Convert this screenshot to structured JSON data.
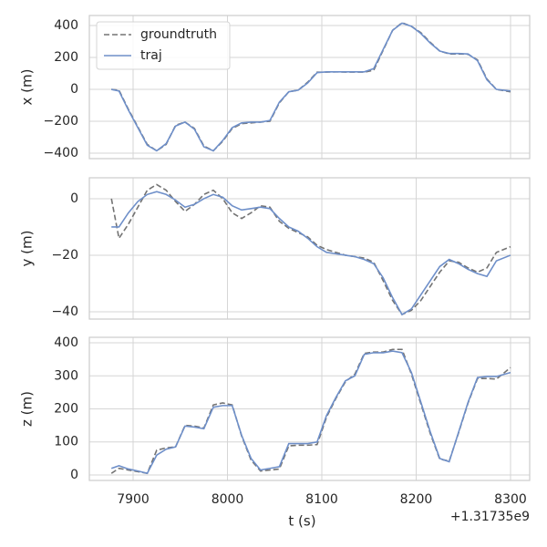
{
  "chart_data": [
    {
      "type": "line",
      "ylabel": "x (m)",
      "legend": "upper left",
      "grid": true,
      "xlim": [
        7853.6,
        8320.3
      ],
      "xticks": [
        7900,
        8000,
        8100,
        8200,
        8300
      ],
      "ylim": [
        -434,
        463
      ],
      "yticks": [
        {
          "value": -400,
          "label": "−400"
        },
        {
          "value": -200,
          "label": "−200"
        },
        0,
        200,
        400
      ],
      "x": [
        7877,
        7885,
        7895,
        7905,
        7915,
        7925,
        7935,
        7945,
        7955,
        7965,
        7975,
        7985,
        7995,
        8005,
        8015,
        8025,
        8035,
        8045,
        8055,
        8065,
        8075,
        8085,
        8095,
        8105,
        8115,
        8125,
        8135,
        8145,
        8155,
        8165,
        8175,
        8185,
        8195,
        8205,
        8215,
        8225,
        8235,
        8245,
        8255,
        8265,
        8275,
        8285,
        8300
      ],
      "series": [
        {
          "name": "groundtruth",
          "color": "#737373",
          "dashed": true,
          "values": [
            0,
            -5,
            -125,
            -235,
            -345,
            -385,
            -345,
            -225,
            -205,
            -245,
            -355,
            -385,
            -325,
            -245,
            -215,
            -210,
            -205,
            -200,
            -85,
            -15,
            -5,
            45,
            108,
            108,
            110,
            108,
            108,
            108,
            120,
            245,
            370,
            418,
            395,
            355,
            295,
            240,
            222,
            222,
            220,
            185,
            65,
            0,
            -15
          ]
        },
        {
          "name": "traj",
          "color": "#6e8fc9",
          "dashed": false,
          "values": [
            0,
            -10,
            -130,
            -240,
            -350,
            -385,
            -340,
            -230,
            -205,
            -250,
            -360,
            -385,
            -320,
            -240,
            -210,
            -205,
            -205,
            -195,
            -80,
            -15,
            -5,
            40,
            105,
            110,
            110,
            110,
            110,
            110,
            130,
            250,
            370,
            415,
            395,
            350,
            290,
            240,
            225,
            225,
            222,
            180,
            60,
            0,
            -10
          ]
        }
      ]
    },
    {
      "type": "line",
      "ylabel": "y (m)",
      "grid": true,
      "xlim": [
        7853.6,
        8320.3
      ],
      "xticks": [
        7900,
        8000,
        8100,
        8200,
        8300
      ],
      "ylim": [
        -42.6,
        7.4
      ],
      "yticks": [
        {
          "value": -40,
          "label": "−40"
        },
        {
          "value": -20,
          "label": "−20"
        },
        0
      ],
      "x": [
        7877,
        7885,
        7895,
        7905,
        7915,
        7925,
        7935,
        7945,
        7955,
        7965,
        7975,
        7985,
        7995,
        8005,
        8015,
        8025,
        8035,
        8045,
        8055,
        8065,
        8075,
        8085,
        8095,
        8105,
        8115,
        8125,
        8135,
        8145,
        8155,
        8165,
        8175,
        8185,
        8195,
        8205,
        8215,
        8225,
        8235,
        8245,
        8255,
        8265,
        8275,
        8285,
        8300
      ],
      "series": [
        {
          "color": "#737373",
          "dashed": true,
          "values": [
            0,
            -14,
            -9,
            -3,
            3,
            5,
            3,
            -1,
            -4.5,
            -2,
            1.5,
            3,
            0,
            -5,
            -7,
            -5,
            -2.5,
            -3,
            -8,
            -10.5,
            -12,
            -13.5,
            -16.5,
            -18,
            -19,
            -20,
            -20.5,
            -21,
            -22.5,
            -29,
            -36,
            -41,
            -39.5,
            -36,
            -31,
            -26,
            -22,
            -22.5,
            -24.5,
            -26,
            -24.5,
            -19,
            -17
          ]
        },
        {
          "color": "#6e8fc9",
          "dashed": false,
          "values": [
            -10,
            -10,
            -5,
            -1,
            1.5,
            2.5,
            1.5,
            -0.5,
            -3,
            -2,
            0,
            1.5,
            0.5,
            -2.5,
            -4,
            -3.5,
            -3,
            -3.5,
            -7,
            -10,
            -11.5,
            -14,
            -17,
            -19,
            -19.5,
            -20,
            -20.5,
            -21.5,
            -23,
            -28,
            -35,
            -41,
            -39,
            -34,
            -29,
            -24,
            -21.5,
            -23,
            -25,
            -26.5,
            -27.5,
            -22,
            -20
          ]
        }
      ]
    },
    {
      "type": "line",
      "ylabel": "z (m)",
      "xlabel": "t (s)",
      "x_offset_label": "+1.31735e9",
      "grid": true,
      "xlim": [
        7853.6,
        8320.3
      ],
      "xticks": [
        7900,
        8000,
        8100,
        8200,
        8300
      ],
      "ylim": [
        -16.6,
        416.6
      ],
      "yticks": [
        0,
        100,
        200,
        300,
        400
      ],
      "x": [
        7877,
        7885,
        7895,
        7905,
        7915,
        7925,
        7935,
        7945,
        7955,
        7965,
        7975,
        7985,
        7995,
        8005,
        8015,
        8025,
        8035,
        8045,
        8055,
        8065,
        8075,
        8085,
        8095,
        8105,
        8115,
        8125,
        8135,
        8145,
        8155,
        8165,
        8175,
        8185,
        8195,
        8205,
        8215,
        8225,
        8235,
        8245,
        8255,
        8265,
        8275,
        8285,
        8300
      ],
      "series": [
        {
          "color": "#737373",
          "dashed": true,
          "values": [
            5,
            20,
            15,
            10,
            5,
            75,
            82,
            85,
            150,
            148,
            142,
            212,
            218,
            212,
            118,
            45,
            12,
            15,
            18,
            88,
            90,
            90,
            92,
            175,
            232,
            282,
            305,
            368,
            372,
            372,
            380,
            380,
            305,
            215,
            125,
            48,
            42,
            128,
            218,
            292,
            292,
            290,
            325
          ]
        },
        {
          "color": "#6e8fc9",
          "dashed": false,
          "values": [
            20,
            28,
            18,
            12,
            5,
            60,
            78,
            85,
            148,
            145,
            140,
            205,
            210,
            210,
            120,
            50,
            15,
            20,
            25,
            95,
            95,
            95,
            100,
            180,
            235,
            285,
            300,
            365,
            370,
            370,
            375,
            370,
            310,
            220,
            130,
            50,
            40,
            130,
            220,
            295,
            298,
            298,
            310
          ]
        }
      ]
    }
  ]
}
